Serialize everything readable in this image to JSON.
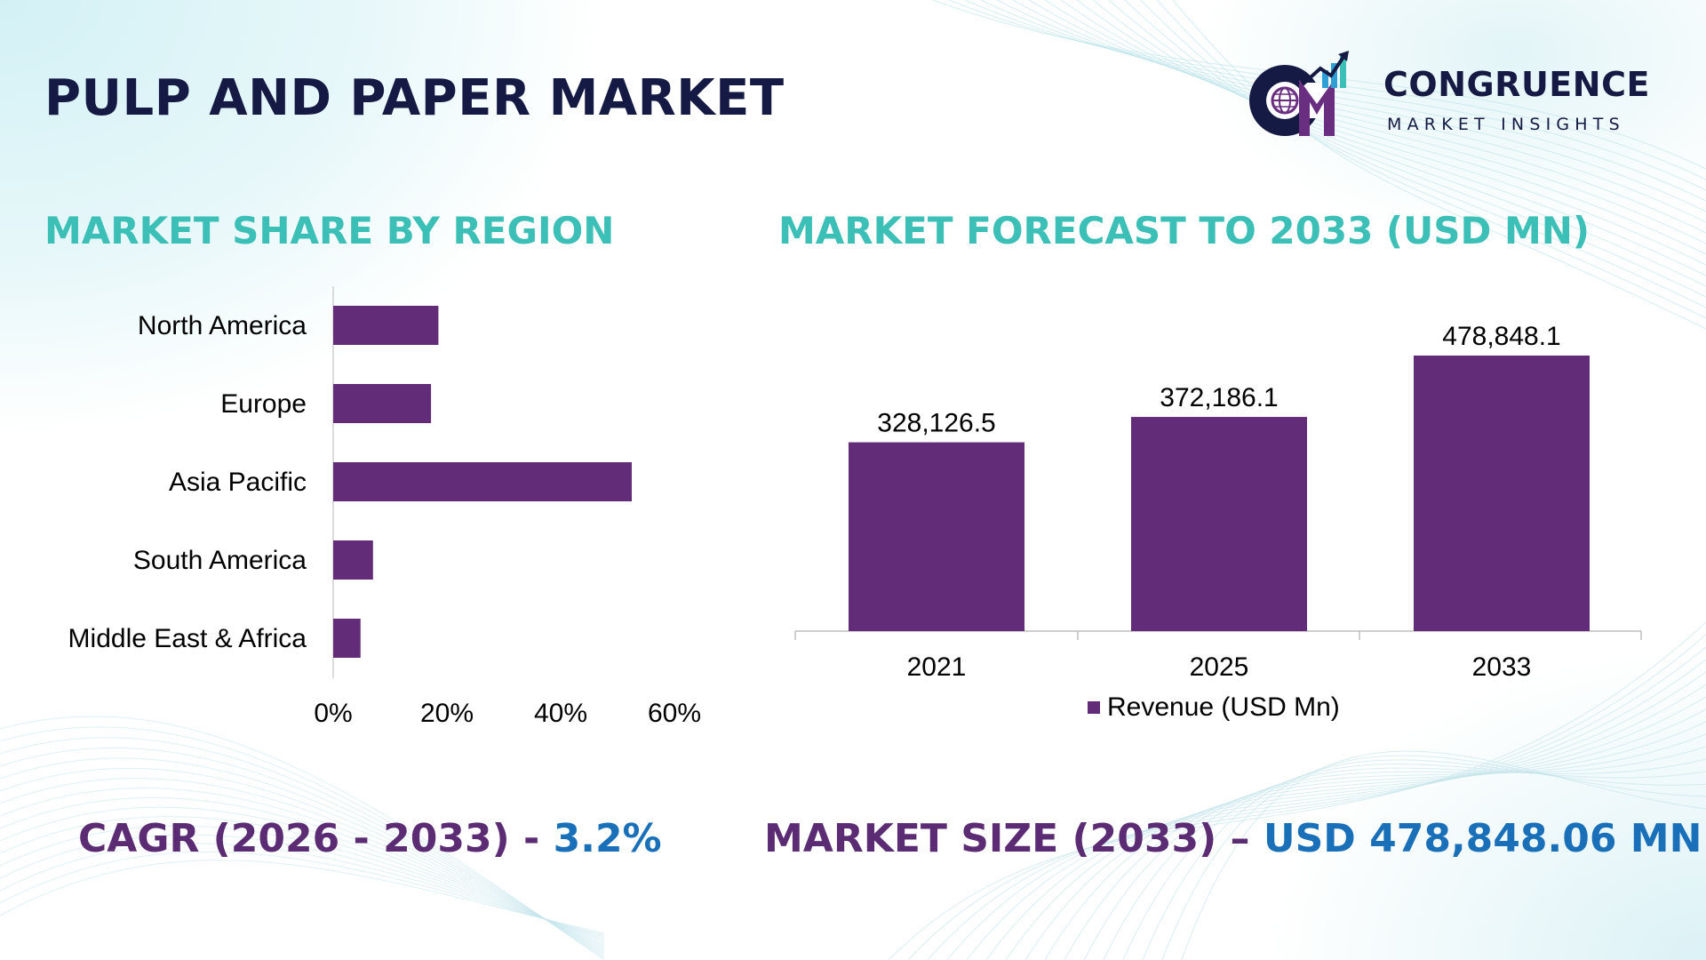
{
  "title": "PULP AND PAPER MARKET",
  "logo": {
    "name": "CONGRUENCE",
    "tagline": "MARKET INSIGHTS",
    "icon": "cm-logo-icon"
  },
  "colors": {
    "title": "#151a44",
    "section_title": "#3bbfb7",
    "bar": "#632c78",
    "stat_label": "#5b2b74",
    "stat_value": "#1a70b8"
  },
  "chart_data": [
    {
      "type": "bar",
      "orientation": "horizontal",
      "title": "MARKET SHARE BY REGION",
      "categories": [
        "North America",
        "Europe",
        "Asia Pacific",
        "South America",
        "Middle East & Africa"
      ],
      "values": [
        18.5,
        17.2,
        52.5,
        7.0,
        4.8
      ],
      "unit": "%",
      "xlim": [
        0,
        60
      ],
      "xticks": [
        "0%",
        "20%",
        "40%",
        "60%"
      ],
      "grid": false,
      "legend": "none"
    },
    {
      "type": "bar",
      "title": "MARKET FORECAST TO 2033 (USD MN)",
      "categories": [
        "2021",
        "2025",
        "2033"
      ],
      "series": [
        {
          "name": "Revenue (USD Mn)",
          "values": [
            328126.5,
            372186.1,
            478848.1
          ]
        }
      ],
      "data_labels": [
        "328,126.5",
        "372,186.1",
        "478,848.1"
      ],
      "grid": false,
      "legend": "bottom"
    }
  ],
  "stats": {
    "cagr_label": "CAGR (2026 - 2033) - ",
    "cagr_value": "3.2%",
    "size_label": "MARKET SIZE (2033) – ",
    "size_value": "USD 478,848.06 MN"
  }
}
